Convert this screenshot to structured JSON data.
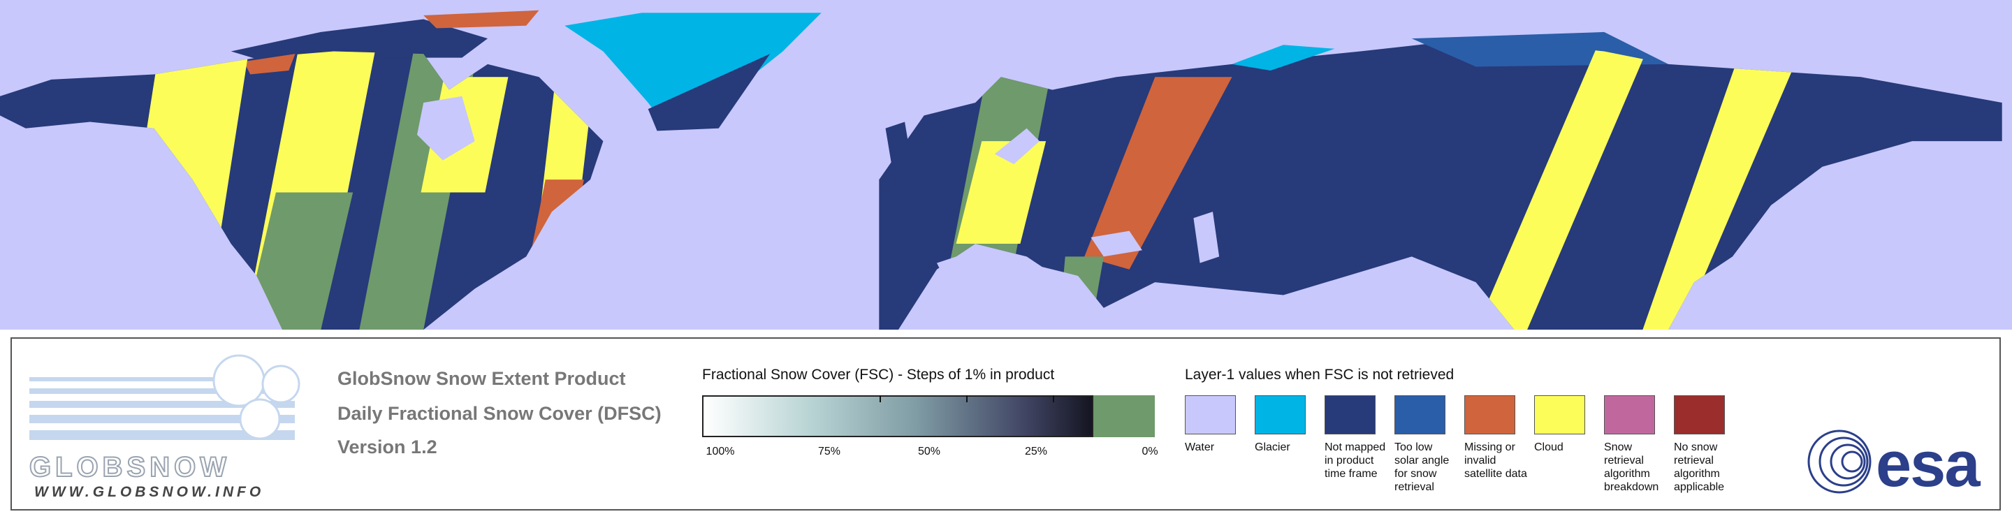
{
  "logo": {
    "name": "GLOBSNOW",
    "url": "WWW.GLOBSNOW.INFO"
  },
  "titles": [
    "GlobSnow Snow Extent Product",
    "Daily Fractional Snow Cover (DFSC)",
    "Version 1.2"
  ],
  "fsc_scale": {
    "title": "Fractional Snow Cover (FSC) - Steps of 1% in product",
    "ticks": [
      "100%",
      "75%",
      "50%",
      "25%",
      "0%"
    ]
  },
  "layer1": {
    "title": "Layer-1 values when FSC is not retrieved",
    "classes": [
      {
        "label": "Water",
        "color": "#c8c8fc"
      },
      {
        "label": "Glacier",
        "color": "#00b4e6"
      },
      {
        "label": "Not mapped in product time frame",
        "color": "#273a7a"
      },
      {
        "label": "Too low solar angle for snow retrieval",
        "color": "#2a5ea8"
      },
      {
        "label": "Missing or invalid satellite data",
        "color": "#d0643c"
      },
      {
        "label": "Cloud",
        "color": "#fdfd5a"
      },
      {
        "label": "Snow retrieval algorithm breakdown",
        "color": "#c0689e"
      },
      {
        "label": "No snow retrieval algorithm applicable",
        "color": "#9b2d2d"
      }
    ]
  },
  "agency": "esa"
}
